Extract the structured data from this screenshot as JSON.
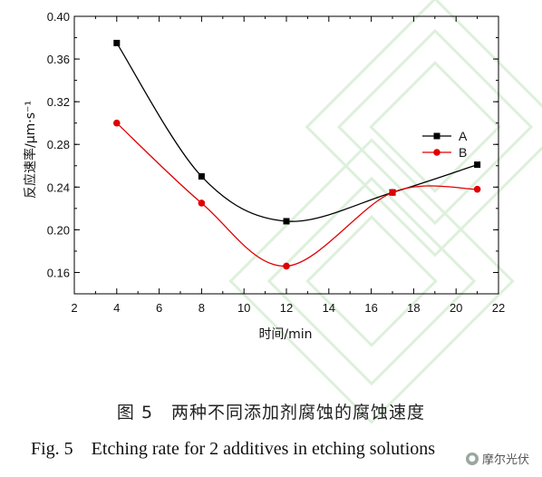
{
  "chart_data": {
    "type": "line",
    "xlabel": "时间/min",
    "ylabel": "反应速率/μm·s⁻¹",
    "xlim": [
      2,
      22
    ],
    "ylim": [
      0.14,
      0.4
    ],
    "xticks": [
      2,
      4,
      6,
      8,
      10,
      12,
      14,
      16,
      18,
      20,
      22
    ],
    "yticks": [
      0.16,
      0.2,
      0.24,
      0.28,
      0.32,
      0.36,
      0.4
    ],
    "ytick_labels": [
      "0.16",
      "0.20",
      "0.24",
      "0.28",
      "0.32",
      "0.36",
      "0.40"
    ],
    "legend_position": "right",
    "series": [
      {
        "name": "A",
        "color": "#000000",
        "marker": "square",
        "x": [
          4,
          8,
          12,
          17,
          21
        ],
        "values": [
          0.375,
          0.25,
          0.208,
          0.235,
          0.261
        ]
      },
      {
        "name": "B",
        "color": "#e00000",
        "marker": "circle",
        "x": [
          4,
          8,
          12,
          17,
          21
        ],
        "values": [
          0.3,
          0.225,
          0.166,
          0.235,
          0.238
        ]
      }
    ]
  },
  "captions": {
    "chinese": "图 5　两种不同添加剂腐蚀的腐蚀速度",
    "english": "Fig. 5　Etching rate for 2 additives in etching solutions"
  },
  "watermark": {
    "icon": "wechat-icon",
    "text": "摩尔光伏"
  }
}
